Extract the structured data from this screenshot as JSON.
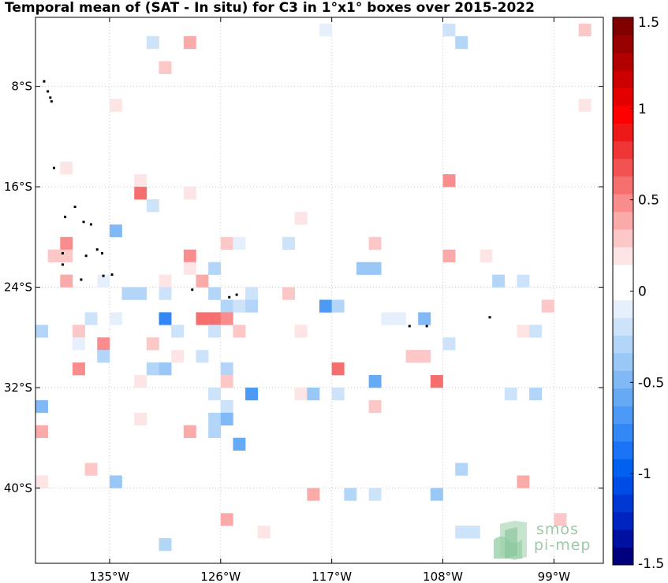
{
  "title": "Temporal mean of (SAT - In situ) for C3 in 1°x1° boxes over 2015-2022",
  "map": {
    "lon_range": [
      -141,
      -95
    ],
    "lat_range": [
      -46,
      -2.5
    ],
    "x_ticks": [
      {
        "value": -135,
        "label": "135°W"
      },
      {
        "value": -126,
        "label": "126°W"
      },
      {
        "value": -117,
        "label": "117°W"
      },
      {
        "value": -108,
        "label": "108°W"
      },
      {
        "value": -99,
        "label": "99°W"
      }
    ],
    "y_ticks": [
      {
        "value": -8,
        "label": "8°S"
      },
      {
        "value": -16,
        "label": "16°S"
      },
      {
        "value": -24,
        "label": "24°S"
      },
      {
        "value": -32,
        "label": "32°S"
      },
      {
        "value": -40,
        "label": "40°S"
      }
    ],
    "grid": "dotted"
  },
  "colorbar": {
    "range": [
      -1.5,
      1.5
    ],
    "ticks": [
      {
        "value": 1.5,
        "label": "1.5"
      },
      {
        "value": 1,
        "label": "1"
      },
      {
        "value": 0.5,
        "label": "0.5"
      },
      {
        "value": 0,
        "label": "0"
      },
      {
        "value": -0.5,
        "label": "-0.5"
      },
      {
        "value": -1,
        "label": "-1"
      },
      {
        "value": -1.5,
        "label": "-1.5"
      }
    ],
    "colors_bottom_to_top": [
      "#00007f",
      "#0010a0",
      "#0024bf",
      "#0038d4",
      "#004ce6",
      "#0060f0",
      "#1a74f5",
      "#3388f5",
      "#4c9af5",
      "#66aaf5",
      "#80b9f5",
      "#99c8f7",
      "#b3d6f8",
      "#cce3fa",
      "#e5f0fc",
      "#ffffff",
      "#ffffff",
      "#fde5e5",
      "#fcc7c7",
      "#fbaaaa",
      "#f98c8c",
      "#f66f6f",
      "#f25252",
      "#ef3535",
      "#ed1818",
      "#ff0000",
      "#e50000",
      "#cc0000",
      "#b20000",
      "#990000",
      "#800000"
    ]
  },
  "chart_data": {
    "type": "heatmap",
    "variable": "SAT - In situ",
    "units_range": [
      -1.5,
      1.5
    ],
    "cells": [
      {
        "lon": -131.5,
        "lat": -4.5,
        "value": -0.2
      },
      {
        "lon": -128.5,
        "lat": -4.5,
        "value": 0.4
      },
      {
        "lon": -117.5,
        "lat": -3.5,
        "value": -0.1
      },
      {
        "lon": -107.5,
        "lat": -3.5,
        "value": -0.15
      },
      {
        "lon": -106.5,
        "lat": -4.5,
        "value": -0.3
      },
      {
        "lon": -96.5,
        "lat": -3.5,
        "value": 0.3
      },
      {
        "lon": -130.5,
        "lat": -6.5,
        "value": 0.25
      },
      {
        "lon": -96.5,
        "lat": -9.5,
        "value": 0.2
      },
      {
        "lon": -134.5,
        "lat": -9.5,
        "value": 0.2
      },
      {
        "lon": -138.5,
        "lat": -14.5,
        "value": 0.2
      },
      {
        "lon": -132.5,
        "lat": -15.5,
        "value": 0.2
      },
      {
        "lon": -132.5,
        "lat": -16.5,
        "value": 0.6
      },
      {
        "lon": -128.5,
        "lat": -16.5,
        "value": 0.2
      },
      {
        "lon": -107.5,
        "lat": -15.5,
        "value": 0.5
      },
      {
        "lon": -131.5,
        "lat": -17.5,
        "value": -0.2
      },
      {
        "lon": -119.5,
        "lat": -18.5,
        "value": 0.2
      },
      {
        "lon": -134.5,
        "lat": -19.5,
        "value": -0.45
      },
      {
        "lon": -138.5,
        "lat": -20.5,
        "value": 0.45
      },
      {
        "lon": -139.5,
        "lat": -21.5,
        "value": 0.3
      },
      {
        "lon": -138.5,
        "lat": -21.5,
        "value": 0.3
      },
      {
        "lon": -125.5,
        "lat": -20.5,
        "value": 0.3
      },
      {
        "lon": -124.5,
        "lat": -20.5,
        "value": -0.1
      },
      {
        "lon": -120.5,
        "lat": -20.5,
        "value": -0.15
      },
      {
        "lon": -113.5,
        "lat": -20.5,
        "value": 0.3
      },
      {
        "lon": -128.5,
        "lat": -21.5,
        "value": 0.5
      },
      {
        "lon": -107.5,
        "lat": -21.5,
        "value": 0.35
      },
      {
        "lon": -104.5,
        "lat": -21.5,
        "value": 0.15
      },
      {
        "lon": -128.5,
        "lat": -22.5,
        "value": 0.2
      },
      {
        "lon": -126.5,
        "lat": -22.5,
        "value": -0.25
      },
      {
        "lon": -114.5,
        "lat": -22.5,
        "value": -0.35
      },
      {
        "lon": -113.5,
        "lat": -22.5,
        "value": -0.35
      },
      {
        "lon": -138.5,
        "lat": -23.5,
        "value": 0.35
      },
      {
        "lon": -135.5,
        "lat": -23.5,
        "value": -0.1
      },
      {
        "lon": -130.5,
        "lat": -23.5,
        "value": 0.2
      },
      {
        "lon": -127.5,
        "lat": -23.5,
        "value": 0.35
      },
      {
        "lon": -103.5,
        "lat": -23.5,
        "value": -0.25
      },
      {
        "lon": -101.5,
        "lat": -23.5,
        "value": -0.15
      },
      {
        "lon": -133.5,
        "lat": -24.5,
        "value": -0.25
      },
      {
        "lon": -132.5,
        "lat": -24.5,
        "value": -0.25
      },
      {
        "lon": -130.5,
        "lat": -24.5,
        "value": -0.2
      },
      {
        "lon": -126.5,
        "lat": -24.5,
        "value": -0.3
      },
      {
        "lon": -123.5,
        "lat": -24.5,
        "value": -0.15
      },
      {
        "lon": -120.5,
        "lat": -24.5,
        "value": 0.25
      },
      {
        "lon": -125.5,
        "lat": -25.5,
        "value": -0.3
      },
      {
        "lon": -124.5,
        "lat": -25.5,
        "value": -0.2
      },
      {
        "lon": -123.5,
        "lat": -25.5,
        "value": -0.3
      },
      {
        "lon": -117.5,
        "lat": -25.5,
        "value": -0.7
      },
      {
        "lon": -116.5,
        "lat": -25.5,
        "value": -0.3
      },
      {
        "lon": -99.5,
        "lat": -25.5,
        "value": 0.25
      },
      {
        "lon": -136.5,
        "lat": -26.5,
        "value": -0.2
      },
      {
        "lon": -134.5,
        "lat": -26.5,
        "value": -0.1
      },
      {
        "lon": -130.5,
        "lat": -26.5,
        "value": -0.75
      },
      {
        "lon": -127.5,
        "lat": -26.5,
        "value": 0.6
      },
      {
        "lon": -126.5,
        "lat": -26.5,
        "value": 0.6
      },
      {
        "lon": -125.5,
        "lat": -26.5,
        "value": 0.5
      },
      {
        "lon": -112.5,
        "lat": -26.5,
        "value": -0.1
      },
      {
        "lon": -111.5,
        "lat": -26.5,
        "value": -0.1
      },
      {
        "lon": -109.5,
        "lat": -26.5,
        "value": -0.45
      },
      {
        "lon": -140.5,
        "lat": -27.5,
        "value": -0.25
      },
      {
        "lon": -137.5,
        "lat": -27.5,
        "value": 0.3
      },
      {
        "lon": -129.5,
        "lat": -27.5,
        "value": -0.2
      },
      {
        "lon": -126.5,
        "lat": -27.5,
        "value": -0.15
      },
      {
        "lon": -124.5,
        "lat": -27.5,
        "value": 0.3
      },
      {
        "lon": -119.5,
        "lat": -27.5,
        "value": 0.2
      },
      {
        "lon": -101.5,
        "lat": -27.5,
        "value": 0.2
      },
      {
        "lon": -100.5,
        "lat": -27.5,
        "value": -0.2
      },
      {
        "lon": -137.5,
        "lat": -28.5,
        "value": -0.1
      },
      {
        "lon": -135.5,
        "lat": -28.5,
        "value": 0.45
      },
      {
        "lon": -131.5,
        "lat": -28.5,
        "value": 0.25
      },
      {
        "lon": -107.5,
        "lat": -28.5,
        "value": -0.15
      },
      {
        "lon": -135.5,
        "lat": -29.5,
        "value": -0.3
      },
      {
        "lon": -129.5,
        "lat": -29.5,
        "value": 0.15
      },
      {
        "lon": -127.5,
        "lat": -29.5,
        "value": -0.15
      },
      {
        "lon": -110.5,
        "lat": -29.5,
        "value": 0.3
      },
      {
        "lon": -109.5,
        "lat": -29.5,
        "value": 0.3
      },
      {
        "lon": -137.5,
        "lat": -30.5,
        "value": 0.45
      },
      {
        "lon": -131.5,
        "lat": -30.5,
        "value": -0.3
      },
      {
        "lon": -130.5,
        "lat": -30.5,
        "value": -0.4
      },
      {
        "lon": -125.5,
        "lat": -30.5,
        "value": -0.25
      },
      {
        "lon": -116.5,
        "lat": -30.5,
        "value": 0.6
      },
      {
        "lon": -132.5,
        "lat": -31.5,
        "value": 0.2
      },
      {
        "lon": -125.5,
        "lat": -31.5,
        "value": 0.3
      },
      {
        "lon": -113.5,
        "lat": -31.5,
        "value": -0.55
      },
      {
        "lon": -108.5,
        "lat": -31.5,
        "value": 0.6
      },
      {
        "lon": -126.5,
        "lat": -32.5,
        "value": -0.15
      },
      {
        "lon": -123.5,
        "lat": -32.5,
        "value": -0.7
      },
      {
        "lon": -119.5,
        "lat": -32.5,
        "value": 0.2
      },
      {
        "lon": -118.5,
        "lat": -32.5,
        "value": -0.4
      },
      {
        "lon": -116.5,
        "lat": -32.5,
        "value": -0.2
      },
      {
        "lon": -102.5,
        "lat": -32.5,
        "value": -0.15
      },
      {
        "lon": -100.5,
        "lat": -32.5,
        "value": -0.3
      },
      {
        "lon": -140.5,
        "lat": -33.5,
        "value": -0.5
      },
      {
        "lon": -125.5,
        "lat": -33.5,
        "value": -0.2
      },
      {
        "lon": -113.5,
        "lat": -33.5,
        "value": 0.3
      },
      {
        "lon": -132.5,
        "lat": -34.5,
        "value": 0.2
      },
      {
        "lon": -126.5,
        "lat": -34.5,
        "value": -0.3
      },
      {
        "lon": -125.5,
        "lat": -34.5,
        "value": -0.5
      },
      {
        "lon": -140.5,
        "lat": -35.5,
        "value": 0.35
      },
      {
        "lon": -128.5,
        "lat": -35.5,
        "value": 0.35
      },
      {
        "lon": -126.5,
        "lat": -35.5,
        "value": -0.3
      },
      {
        "lon": -124.5,
        "lat": -36.5,
        "value": -0.55
      },
      {
        "lon": -136.5,
        "lat": -38.5,
        "value": 0.25
      },
      {
        "lon": -106.5,
        "lat": -38.5,
        "value": -0.25
      },
      {
        "lon": -140.5,
        "lat": -39.5,
        "value": 0.2
      },
      {
        "lon": -134.5,
        "lat": -39.5,
        "value": -0.35
      },
      {
        "lon": -101.5,
        "lat": -39.5,
        "value": 0.35
      },
      {
        "lon": -118.5,
        "lat": -40.5,
        "value": 0.35
      },
      {
        "lon": -115.5,
        "lat": -40.5,
        "value": -0.25
      },
      {
        "lon": -113.5,
        "lat": -40.5,
        "value": -0.15
      },
      {
        "lon": -108.5,
        "lat": -40.5,
        "value": -0.35
      },
      {
        "lon": -125.5,
        "lat": -42.5,
        "value": 0.35
      },
      {
        "lon": -122.5,
        "lat": -43.5,
        "value": 0.2
      },
      {
        "lon": -106.5,
        "lat": -43.5,
        "value": -0.2
      },
      {
        "lon": -105.5,
        "lat": -43.5,
        "value": -0.2
      },
      {
        "lon": -98.5,
        "lat": -42.5,
        "value": 0.25
      },
      {
        "lon": -130.5,
        "lat": -44.5,
        "value": -0.25
      }
    ],
    "land": [
      [
        -140.3,
        -7.6
      ],
      [
        -140.0,
        -8.4
      ],
      [
        -139.8,
        -8.9
      ],
      [
        -139.7,
        -9.2
      ],
      [
        -139.5,
        -14.5
      ],
      [
        -137.8,
        -17.6
      ],
      [
        -138.6,
        -18.4
      ],
      [
        -137.1,
        -18.8
      ],
      [
        -136.5,
        -19.0
      ],
      [
        -138.8,
        -21.3
      ],
      [
        -136.0,
        -21.0
      ],
      [
        -136.9,
        -21.5
      ],
      [
        -135.6,
        -21.3
      ],
      [
        -135.5,
        -23.1
      ],
      [
        -134.8,
        -23.0
      ],
      [
        -138.8,
        -22.2
      ],
      [
        -137.3,
        -23.4
      ],
      [
        -125.3,
        -24.8
      ],
      [
        -128.3,
        -24.2
      ],
      [
        -124.7,
        -24.6
      ],
      [
        -110.7,
        -27.1
      ],
      [
        -109.3,
        -27.1
      ],
      [
        -104.2,
        -26.4
      ]
    ],
    "logo_text": [
      "smos",
      "pi-mep"
    ]
  }
}
